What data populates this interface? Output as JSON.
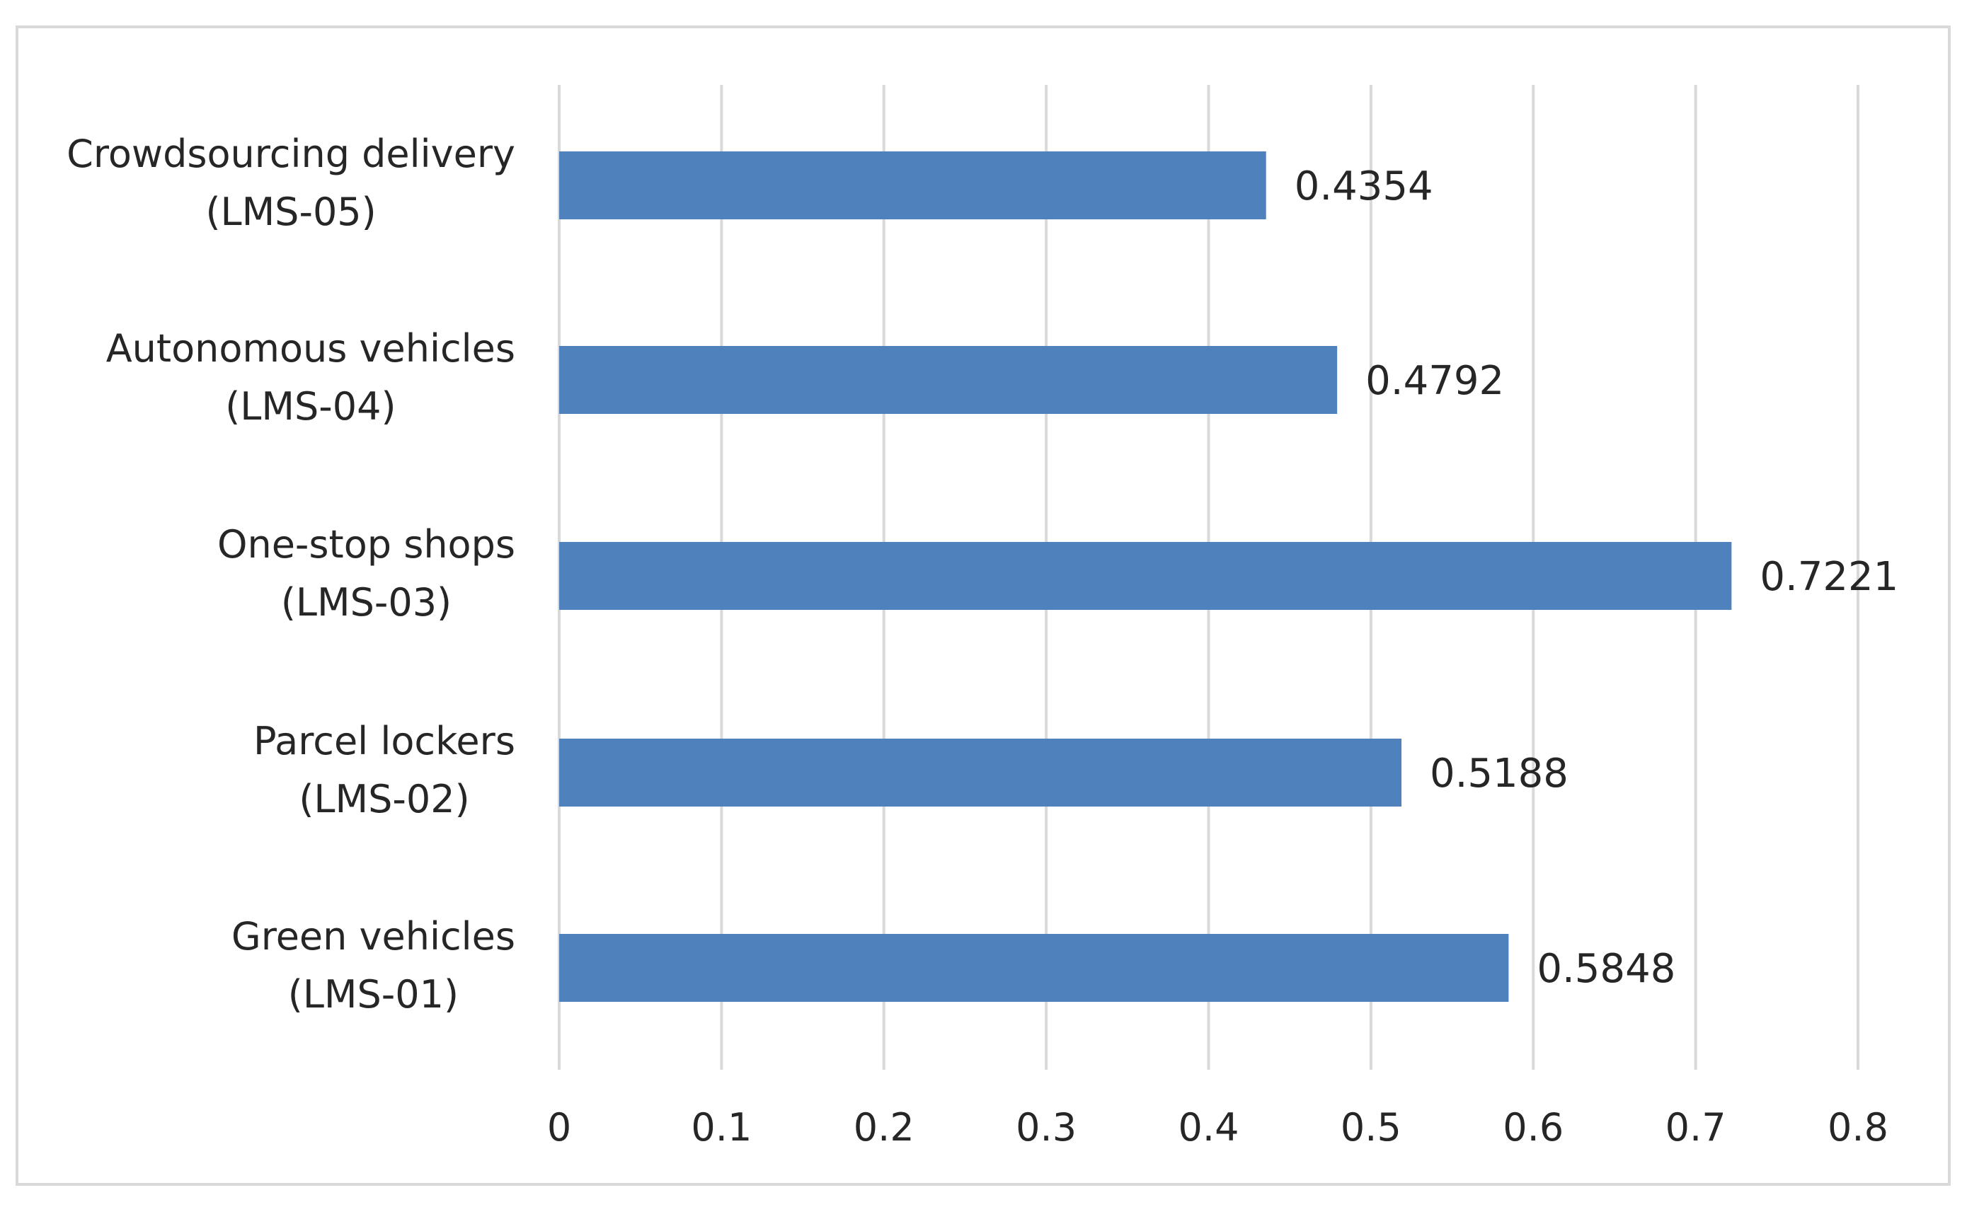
{
  "chart_data": {
    "type": "bar",
    "orientation": "horizontal",
    "title": "",
    "xlabel": "",
    "ylabel": "",
    "categories": [
      "Green vehicles (LMS-01)",
      "Parcel lockers (LMS-02)",
      "One-stop shops (LMS-03)",
      "Autonomous vehicles (LMS-04)",
      "Crowdsourcing delivery (LMS-05)"
    ],
    "category_lines": [
      [
        "Green vehicles",
        "(LMS-01)"
      ],
      [
        "Parcel lockers",
        "(LMS-02)"
      ],
      [
        "One-stop shops",
        "(LMS-03)"
      ],
      [
        "Autonomous vehicles",
        "(LMS-04)"
      ],
      [
        "Crowdsourcing delivery",
        "(LMS-05)"
      ]
    ],
    "values": [
      0.5848,
      0.5188,
      0.7221,
      0.4792,
      0.4354
    ],
    "value_labels": [
      "0.5848",
      "0.5188",
      "0.7221",
      "0.4792",
      "0.4354"
    ],
    "xlim": [
      0,
      0.8
    ],
    "xticks": [
      0,
      0.1,
      0.2,
      0.3,
      0.4,
      0.5,
      0.6,
      0.7,
      0.8
    ],
    "xtick_labels": [
      "0",
      "0.1",
      "0.2",
      "0.3",
      "0.4",
      "0.5",
      "0.6",
      "0.7",
      "0.8"
    ],
    "grid": "vertical",
    "legend": "none",
    "data_labels": true,
    "colors": {
      "bar": "#4f81bd",
      "grid": "#d9d9d9",
      "text": "#262626",
      "border": "#d9d9d9"
    }
  }
}
